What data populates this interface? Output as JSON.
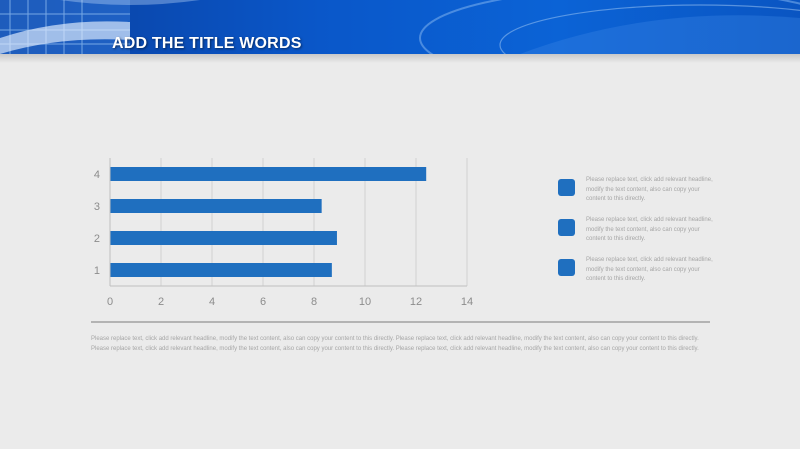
{
  "header": {
    "title": "ADD THE TITLE WORDS"
  },
  "chart_data": {
    "type": "bar",
    "orientation": "horizontal",
    "categories": [
      "1",
      "2",
      "3",
      "4"
    ],
    "values": [
      8.7,
      8.9,
      8.3,
      12.4
    ],
    "xlim": [
      0,
      14
    ],
    "x_ticks": [
      "0",
      "2",
      "4",
      "6",
      "8",
      "10",
      "12",
      "14"
    ],
    "grid": "vertical",
    "bar_color": "#1f6fbf"
  },
  "legend": {
    "items": [
      {
        "text": "Please replace text, click add relevant headline, modify the text content, also can copy your content to this directly."
      },
      {
        "text": "Please replace text, click add relevant headline, modify the text content, also can copy your content to this directly."
      },
      {
        "text": "Please replace text, click add relevant headline, modify the text content, also can copy your content to this directly."
      }
    ]
  },
  "footer": {
    "text": "Please replace text, click add relevant headline, modify the text content, also can copy your content to this directly. Please replace text, click add relevant headline, modify the text content, also can copy your content to this directly. Please replace text, click add relevant headline, modify the text content, also can copy your content to this directly. Please replace text, click add relevant headline, modify the text content, also can copy your content to this directly."
  }
}
